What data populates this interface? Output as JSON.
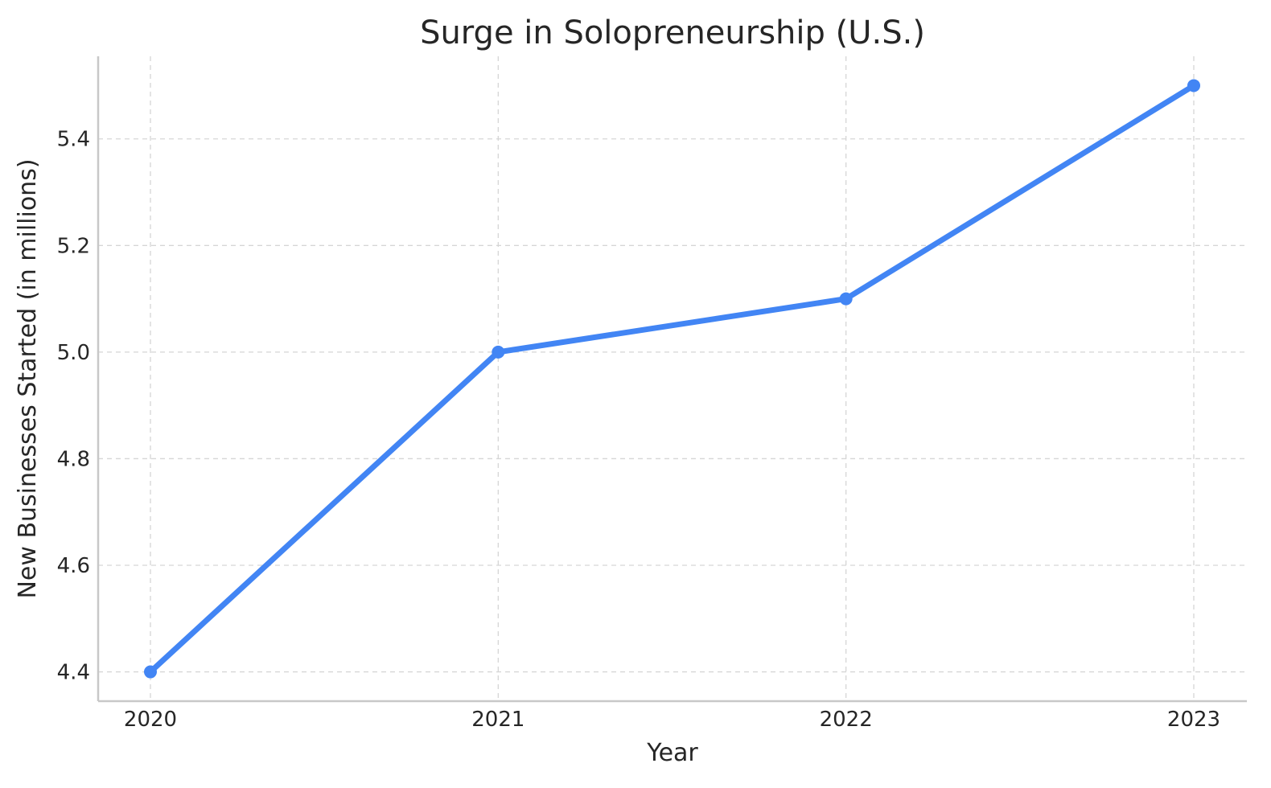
{
  "chart_data": {
    "type": "line",
    "title": "Surge in Solopreneurship (U.S.)",
    "xlabel": "Year",
    "ylabel": "New Businesses Started (in millions)",
    "categories": [
      "2020",
      "2021",
      "2022",
      "2023"
    ],
    "series": [
      {
        "values": [
          4.4,
          5.0,
          5.1,
          5.5
        ]
      }
    ],
    "ylim": [
      4.345,
      5.555
    ],
    "yticks": [
      4.4,
      4.6,
      4.8,
      5.0,
      5.2,
      5.4
    ],
    "ytick_labels": [
      "4.4",
      "4.6",
      "4.8",
      "5.0",
      "5.2",
      "5.4"
    ],
    "grid": true,
    "line_color": "#4285f4",
    "marker": "circle"
  }
}
